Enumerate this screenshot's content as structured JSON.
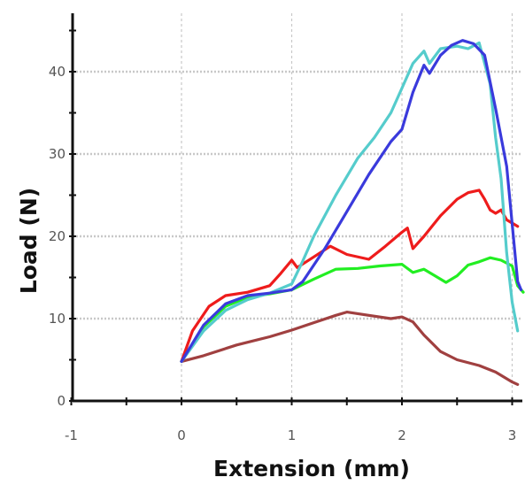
{
  "chart_data": {
    "type": "line",
    "xlabel": "Extension (mm)",
    "ylabel": "Load (N)",
    "xlim": [
      -1,
      3.1
    ],
    "ylim": [
      0,
      45
    ],
    "x_ticks": [
      "-1",
      "0",
      "1",
      "2",
      "3"
    ],
    "y_ticks": [
      "0",
      "10",
      "20",
      "30",
      "40"
    ],
    "grid": true,
    "legend": "none",
    "series": [
      {
        "color": "#a04040",
        "points": [
          [
            0,
            4.8
          ],
          [
            0.2,
            5.5
          ],
          [
            0.5,
            6.8
          ],
          [
            0.8,
            7.8
          ],
          [
            1.0,
            8.6
          ],
          [
            1.2,
            9.5
          ],
          [
            1.4,
            10.4
          ],
          [
            1.5,
            10.8
          ],
          [
            1.7,
            10.4
          ],
          [
            1.9,
            10.0
          ],
          [
            2.0,
            10.2
          ],
          [
            2.1,
            9.6
          ],
          [
            2.2,
            8.0
          ],
          [
            2.35,
            6.0
          ],
          [
            2.5,
            5.0
          ],
          [
            2.7,
            4.3
          ],
          [
            2.85,
            3.5
          ],
          [
            3.0,
            2.3
          ],
          [
            3.05,
            2.0
          ]
        ]
      },
      {
        "color": "#22ee22",
        "points": [
          [
            0,
            4.8
          ],
          [
            0.2,
            9.0
          ],
          [
            0.4,
            11.5
          ],
          [
            0.6,
            12.6
          ],
          [
            0.8,
            13.0
          ],
          [
            1.0,
            13.5
          ],
          [
            1.2,
            14.8
          ],
          [
            1.4,
            16.0
          ],
          [
            1.6,
            16.1
          ],
          [
            1.8,
            16.4
          ],
          [
            2.0,
            16.6
          ],
          [
            2.1,
            15.6
          ],
          [
            2.2,
            16.0
          ],
          [
            2.3,
            15.2
          ],
          [
            2.4,
            14.4
          ],
          [
            2.5,
            15.2
          ],
          [
            2.6,
            16.5
          ],
          [
            2.7,
            16.9
          ],
          [
            2.8,
            17.4
          ],
          [
            2.9,
            17.1
          ],
          [
            3.0,
            16.4
          ],
          [
            3.05,
            14.0
          ],
          [
            3.1,
            13.2
          ]
        ]
      },
      {
        "color": "#ee1c1c",
        "points": [
          [
            0,
            4.8
          ],
          [
            0.1,
            8.5
          ],
          [
            0.25,
            11.5
          ],
          [
            0.4,
            12.8
          ],
          [
            0.6,
            13.2
          ],
          [
            0.8,
            14.0
          ],
          [
            0.9,
            15.5
          ],
          [
            1.0,
            17.1
          ],
          [
            1.05,
            16.2
          ],
          [
            1.2,
            17.5
          ],
          [
            1.35,
            18.8
          ],
          [
            1.5,
            17.8
          ],
          [
            1.7,
            17.2
          ],
          [
            1.85,
            18.8
          ],
          [
            2.0,
            20.5
          ],
          [
            2.05,
            21.0
          ],
          [
            2.1,
            18.5
          ],
          [
            2.2,
            20.0
          ],
          [
            2.35,
            22.5
          ],
          [
            2.5,
            24.5
          ],
          [
            2.6,
            25.3
          ],
          [
            2.7,
            25.6
          ],
          [
            2.75,
            24.5
          ],
          [
            2.8,
            23.2
          ],
          [
            2.85,
            22.8
          ],
          [
            2.9,
            23.2
          ],
          [
            2.95,
            22.0
          ],
          [
            3.05,
            21.2
          ]
        ]
      },
      {
        "color": "#55cccc",
        "points": [
          [
            0,
            4.8
          ],
          [
            0.2,
            8.5
          ],
          [
            0.4,
            11.0
          ],
          [
            0.6,
            12.3
          ],
          [
            0.8,
            13.1
          ],
          [
            1.0,
            14.2
          ],
          [
            1.1,
            17.0
          ],
          [
            1.2,
            20.0
          ],
          [
            1.4,
            25.0
          ],
          [
            1.6,
            29.5
          ],
          [
            1.75,
            32.0
          ],
          [
            1.9,
            35.0
          ],
          [
            2.0,
            38.0
          ],
          [
            2.1,
            41.0
          ],
          [
            2.2,
            42.5
          ],
          [
            2.25,
            41.0
          ],
          [
            2.35,
            42.8
          ],
          [
            2.5,
            43.1
          ],
          [
            2.6,
            42.8
          ],
          [
            2.7,
            43.5
          ],
          [
            2.8,
            38.5
          ],
          [
            2.85,
            32.0
          ],
          [
            2.9,
            27.0
          ],
          [
            2.95,
            18.0
          ],
          [
            3.0,
            12.0
          ],
          [
            3.05,
            8.5
          ]
        ]
      },
      {
        "color": "#3a3adc",
        "points": [
          [
            0,
            4.8
          ],
          [
            0.2,
            9.2
          ],
          [
            0.4,
            11.8
          ],
          [
            0.6,
            12.8
          ],
          [
            0.8,
            13.1
          ],
          [
            1.0,
            13.5
          ],
          [
            1.1,
            14.5
          ],
          [
            1.3,
            18.5
          ],
          [
            1.5,
            23.0
          ],
          [
            1.7,
            27.5
          ],
          [
            1.9,
            31.5
          ],
          [
            2.0,
            33.0
          ],
          [
            2.1,
            37.5
          ],
          [
            2.2,
            40.8
          ],
          [
            2.25,
            39.8
          ],
          [
            2.35,
            42.0
          ],
          [
            2.45,
            43.2
          ],
          [
            2.55,
            43.8
          ],
          [
            2.65,
            43.4
          ],
          [
            2.75,
            42.0
          ],
          [
            2.85,
            35.5
          ],
          [
            2.95,
            28.5
          ],
          [
            3.05,
            14.5
          ],
          [
            3.08,
            13.5
          ]
        ]
      }
    ]
  }
}
